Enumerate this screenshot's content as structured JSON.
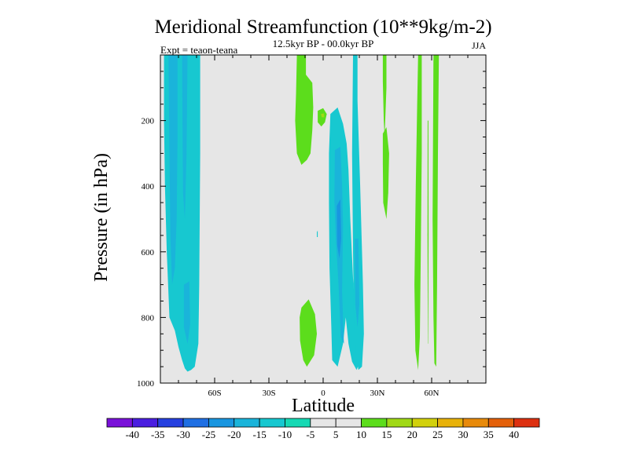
{
  "chart_data": {
    "type": "contour",
    "title": "Meridional Streamfunction (10**9kg/m-2)",
    "subtitle": "12.5kyr BP - 00.0kyr BP",
    "left_label": "Expt = teaon-teana",
    "right_label": "JJA",
    "xlabel": "Latitude",
    "ylabel": "Pressure (in hPa)",
    "xlim": [
      -90,
      90
    ],
    "ylim": [
      0,
      1000
    ],
    "y_inverted": true,
    "x_ticks": [
      {
        "value": -60,
        "label": "60S"
      },
      {
        "value": -30,
        "label": "30S"
      },
      {
        "value": 0,
        "label": "0"
      },
      {
        "value": 30,
        "label": "30N"
      },
      {
        "value": 60,
        "label": "60N"
      }
    ],
    "y_ticks": [
      {
        "value": 200,
        "label": "200"
      },
      {
        "value": 400,
        "label": "400"
      },
      {
        "value": 600,
        "label": "600"
      },
      {
        "value": 800,
        "label": "800"
      },
      {
        "value": 1000,
        "label": "1000"
      }
    ],
    "background_color": "#e6e6e6",
    "colorbar": {
      "labels": [
        "-40",
        "-35",
        "-30",
        "-25",
        "-20",
        "-15",
        "-10",
        "-5",
        "5",
        "10",
        "15",
        "20",
        "25",
        "30",
        "35",
        "40"
      ],
      "colors": [
        "#7a11d9",
        "#4a1ee0",
        "#2640e0",
        "#1f6fe3",
        "#1996e0",
        "#1ab4da",
        "#17c8d0",
        "#16d9b4",
        "#e6e6e6",
        "#5cdd1c",
        "#a0d916",
        "#d2d10c",
        "#e8b20a",
        "#e88a0a",
        "#e4600a",
        "#dd3010"
      ]
    },
    "features": [
      {
        "name": "sh-broad-negative",
        "fill": "#17c8d0",
        "points": [
          [
            -88,
            0
          ],
          [
            -68,
            0
          ],
          [
            -68,
            300
          ],
          [
            -68.5,
            700
          ],
          [
            -69,
            880
          ],
          [
            -71,
            950
          ],
          [
            -73,
            960
          ],
          [
            -75,
            965
          ],
          [
            -76.5,
            955
          ],
          [
            -78,
            930
          ],
          [
            -80,
            890
          ],
          [
            -82,
            840
          ],
          [
            -85,
            800
          ],
          [
            -86.5,
            600
          ],
          [
            -87.5,
            400
          ],
          [
            -88,
            200
          ]
        ]
      },
      {
        "name": "sh-inner-core",
        "fill": "#1ab4da",
        "points": [
          [
            -85.5,
            0
          ],
          [
            -80.5,
            0
          ],
          [
            -80.5,
            250
          ],
          [
            -81,
            500
          ],
          [
            -82,
            650
          ],
          [
            -83.5,
            700
          ],
          [
            -84.5,
            550
          ],
          [
            -85,
            300
          ]
        ]
      },
      {
        "name": "sh-core-b",
        "fill": "#1ab4da",
        "points": [
          [
            -78,
            0
          ],
          [
            -75,
            0
          ],
          [
            -75.5,
            300
          ],
          [
            -76.5,
            500
          ],
          [
            -77.5,
            420
          ],
          [
            -77.8,
            200
          ]
        ]
      },
      {
        "name": "sh-core-c",
        "fill": "#1ab4da",
        "points": [
          [
            -77,
            700
          ],
          [
            -74,
            690
          ],
          [
            -73.5,
            820
          ],
          [
            -75,
            880
          ],
          [
            -77,
            830
          ]
        ]
      },
      {
        "name": "nh-negative-cell",
        "fill": "#17c8d0",
        "points": [
          [
            4,
            180
          ],
          [
            8,
            160
          ],
          [
            11,
            210
          ],
          [
            13,
            270
          ],
          [
            14,
            350
          ],
          [
            15,
            500
          ],
          [
            16.5,
            680
          ],
          [
            18,
            800
          ],
          [
            20,
            940
          ],
          [
            18.5,
            960
          ],
          [
            16,
            935
          ],
          [
            14,
            880
          ],
          [
            12.5,
            800
          ],
          [
            11,
            880
          ],
          [
            8,
            950
          ],
          [
            5,
            930
          ],
          [
            4.5,
            830
          ],
          [
            3.5,
            650
          ],
          [
            3.2,
            450
          ],
          [
            3.2,
            300
          ]
        ]
      },
      {
        "name": "nh-negative-core",
        "fill": "#1ab4da",
        "points": [
          [
            6.5,
            290
          ],
          [
            9.5,
            280
          ],
          [
            10.5,
            400
          ],
          [
            11,
            520
          ],
          [
            10.5,
            720
          ],
          [
            11.5,
            880
          ],
          [
            9.8,
            860
          ],
          [
            8.5,
            700
          ],
          [
            7,
            560
          ],
          [
            6.2,
            440
          ]
        ]
      },
      {
        "name": "nh-negative-inner",
        "fill": "#1996e0",
        "points": [
          [
            7.5,
            460
          ],
          [
            9.5,
            440
          ],
          [
            10,
            560
          ],
          [
            9,
            620
          ],
          [
            7.8,
            580
          ]
        ]
      },
      {
        "name": "nh-negative-tower",
        "fill": "#17c8d0",
        "points": [
          [
            16.5,
            0
          ],
          [
            19,
            0
          ],
          [
            19,
            140
          ],
          [
            20.5,
            400
          ],
          [
            22,
            700
          ],
          [
            22.5,
            850
          ],
          [
            21.5,
            950
          ],
          [
            19.5,
            960
          ],
          [
            18,
            900
          ],
          [
            17,
            800
          ],
          [
            16.5,
            600
          ],
          [
            16,
            300
          ]
        ]
      },
      {
        "name": "nh-tower-core",
        "fill": "#1ab4da",
        "points": [
          [
            17.5,
            560
          ],
          [
            19.5,
            560
          ],
          [
            20,
            760
          ],
          [
            19,
            830
          ],
          [
            17.8,
            760
          ]
        ]
      },
      {
        "name": "upper-green-cell",
        "fill": "#5cdd1c",
        "points": [
          [
            -14.5,
            0
          ],
          [
            -9.5,
            0
          ],
          [
            -9.5,
            60
          ],
          [
            -6,
            85
          ],
          [
            -5.5,
            160
          ],
          [
            -6,
            230
          ],
          [
            -7,
            300
          ],
          [
            -9,
            320
          ],
          [
            -12,
            335
          ],
          [
            -14.5,
            300
          ],
          [
            -15.5,
            200
          ],
          [
            -15,
            120
          ]
        ]
      },
      {
        "name": "upper-green-blob",
        "fill": "#5cdd1c",
        "points": [
          [
            -3,
            170
          ],
          [
            0,
            162
          ],
          [
            2,
            180
          ],
          [
            1,
            205
          ],
          [
            -1,
            218
          ],
          [
            -3,
            205
          ]
        ]
      },
      {
        "name": "upper-green-dot",
        "fill": "#a0d916",
        "points": [
          [
            -1.2,
            180
          ],
          [
            0.5,
            178
          ],
          [
            0.6,
            190
          ],
          [
            -0.8,
            190
          ]
        ]
      },
      {
        "name": "lower-green-cell",
        "fill": "#5cdd1c",
        "points": [
          [
            -12,
            770
          ],
          [
            -8,
            745
          ],
          [
            -4.5,
            790
          ],
          [
            -3.5,
            850
          ],
          [
            -5,
            915
          ],
          [
            -9,
            950
          ],
          [
            -11,
            930
          ],
          [
            -12.8,
            870
          ],
          [
            -13,
            800
          ]
        ]
      },
      {
        "name": "small-cyan-speck",
        "fill": "#17c8d0",
        "points": [
          [
            -3.5,
            540
          ],
          [
            -3,
            535
          ],
          [
            -3,
            555
          ],
          [
            -3.5,
            555
          ]
        ]
      },
      {
        "name": "green-stripe-30n",
        "fill": "#5cdd1c",
        "points": [
          [
            33,
            0
          ],
          [
            35,
            0
          ],
          [
            35,
            100
          ],
          [
            34,
            250
          ],
          [
            33.5,
            200
          ],
          [
            33,
            80
          ]
        ]
      },
      {
        "name": "green-stripe-33n",
        "fill": "#5cdd1c",
        "points": [
          [
            33,
            240
          ],
          [
            35,
            220
          ],
          [
            36.5,
            300
          ],
          [
            36,
            420
          ],
          [
            35,
            500
          ],
          [
            33.2,
            450
          ],
          [
            33,
            330
          ]
        ]
      },
      {
        "name": "green-stripe-50n",
        "fill": "#5cdd1c",
        "points": [
          [
            52.5,
            0
          ],
          [
            54.5,
            0
          ],
          [
            54.5,
            300
          ],
          [
            54,
            600
          ],
          [
            53.5,
            860
          ],
          [
            52.5,
            960
          ],
          [
            51,
            900
          ],
          [
            50.5,
            700
          ],
          [
            51.2,
            400
          ],
          [
            52,
            150
          ]
        ]
      },
      {
        "name": "green-stripe-56n",
        "fill": "#5cdd1c",
        "points": [
          [
            57.8,
            200
          ],
          [
            58.2,
            200
          ],
          [
            58.3,
            550
          ],
          [
            58.1,
            880
          ],
          [
            57.9,
            880
          ],
          [
            57.7,
            550
          ]
        ]
      },
      {
        "name": "green-stripe-60n",
        "fill": "#5cdd1c",
        "points": [
          [
            61,
            0
          ],
          [
            64,
            0
          ],
          [
            63.5,
            300
          ],
          [
            63,
            700
          ],
          [
            62.5,
            950
          ],
          [
            61.5,
            940
          ],
          [
            61,
            800
          ],
          [
            60.5,
            500
          ]
        ]
      }
    ]
  }
}
